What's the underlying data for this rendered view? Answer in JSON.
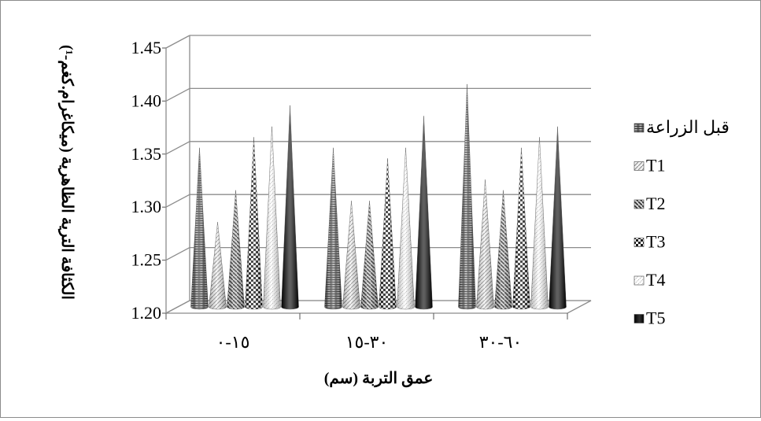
{
  "chart_data": {
    "type": "bar",
    "bar_shape": "cone",
    "ylabel": "الكثافة الترية الظاهرية (ميكاغرام.كغم-¹)",
    "xlabel": "عمق التربة (سم)",
    "ylim": [
      1.2,
      1.45
    ],
    "y_ticks": [
      "1.20",
      "1.25",
      "1.30",
      "1.35",
      "1.40",
      "1.45"
    ],
    "grid": true,
    "legend_position": "right",
    "categories": [
      "١٥-٠",
      "٣٠-١٥",
      "٦٠-٣٠"
    ],
    "series": [
      {
        "name": "قبل الزراعة",
        "values": [
          1.35,
          1.35,
          1.41
        ],
        "color": "#7a7a7a"
      },
      {
        "name": "T1",
        "values": [
          1.28,
          1.3,
          1.32
        ],
        "color": "#cfcfcf"
      },
      {
        "name": "T2",
        "values": [
          1.31,
          1.3,
          1.31
        ],
        "color": "#8a8a8a"
      },
      {
        "name": "T3",
        "values": [
          1.36,
          1.34,
          1.35
        ],
        "color": "#2e2e2e"
      },
      {
        "name": "T4",
        "values": [
          1.37,
          1.35,
          1.36
        ],
        "color": "#e0e0e0"
      },
      {
        "name": "T5",
        "values": [
          1.39,
          1.38,
          1.37
        ],
        "color": "#000000"
      }
    ]
  }
}
